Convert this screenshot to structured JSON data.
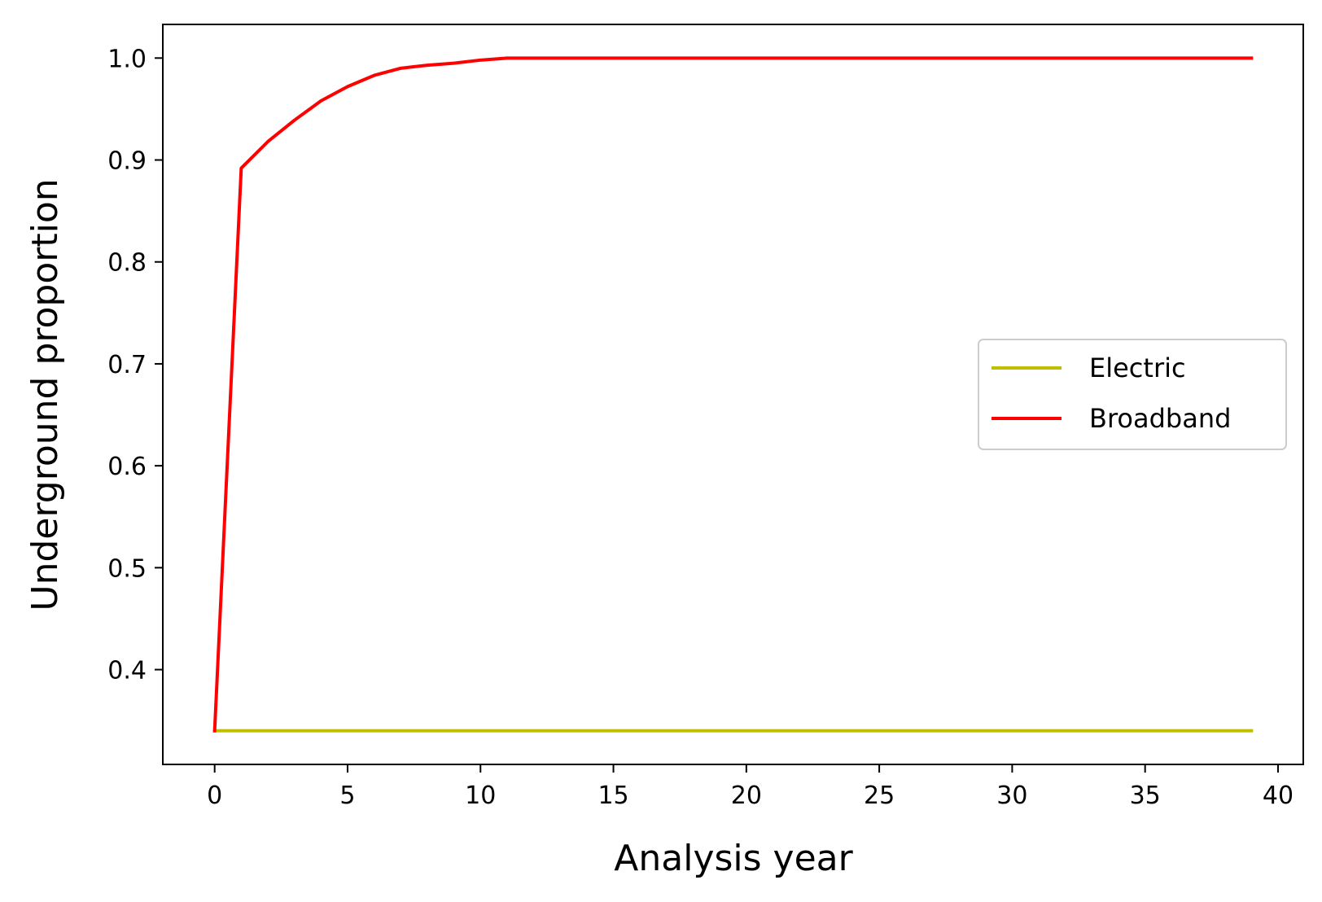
{
  "chart_data": {
    "type": "line",
    "title": "",
    "xlabel": "Analysis year",
    "ylabel": "Underground proportion",
    "xlim": [
      -1.95,
      40.95
    ],
    "ylim": [
      0.307,
      1.033
    ],
    "xticks": [
      0,
      5,
      10,
      15,
      20,
      25,
      30,
      35,
      40
    ],
    "xtick_labels": [
      "0",
      "5",
      "10",
      "15",
      "20",
      "25",
      "30",
      "35",
      "40"
    ],
    "yticks": [
      0.4,
      0.5,
      0.6,
      0.7,
      0.8,
      0.9,
      1.0
    ],
    "ytick_labels": [
      "0.4",
      "0.5",
      "0.6",
      "0.7",
      "0.8",
      "0.9",
      "1.0"
    ],
    "grid": false,
    "legend_position": "center-right",
    "series": [
      {
        "name": "Electric",
        "color": "#bfbf00",
        "x": [
          0,
          1,
          2,
          3,
          4,
          5,
          6,
          7,
          8,
          9,
          10,
          11,
          12,
          13,
          14,
          15,
          16,
          17,
          18,
          19,
          20,
          21,
          22,
          23,
          24,
          25,
          26,
          27,
          28,
          29,
          30,
          31,
          32,
          33,
          34,
          35,
          36,
          37,
          38,
          39
        ],
        "values": [
          0.34,
          0.34,
          0.34,
          0.34,
          0.34,
          0.34,
          0.34,
          0.34,
          0.34,
          0.34,
          0.34,
          0.34,
          0.34,
          0.34,
          0.34,
          0.34,
          0.34,
          0.34,
          0.34,
          0.34,
          0.34,
          0.34,
          0.34,
          0.34,
          0.34,
          0.34,
          0.34,
          0.34,
          0.34,
          0.34,
          0.34,
          0.34,
          0.34,
          0.34,
          0.34,
          0.34,
          0.34,
          0.34,
          0.34,
          0.34
        ]
      },
      {
        "name": "Broadband",
        "color": "#ff0000",
        "x": [
          0,
          1,
          2,
          3,
          4,
          5,
          6,
          7,
          8,
          9,
          10,
          11,
          12,
          13,
          14,
          15,
          16,
          17,
          18,
          19,
          20,
          21,
          22,
          23,
          24,
          25,
          26,
          27,
          28,
          29,
          30,
          31,
          32,
          33,
          34,
          35,
          36,
          37,
          38,
          39
        ],
        "values": [
          0.34,
          0.892,
          0.918,
          0.939,
          0.958,
          0.972,
          0.983,
          0.99,
          0.993,
          0.995,
          0.998,
          1.0,
          1.0,
          1.0,
          1.0,
          1.0,
          1.0,
          1.0,
          1.0,
          1.0,
          1.0,
          1.0,
          1.0,
          1.0,
          1.0,
          1.0,
          1.0,
          1.0,
          1.0,
          1.0,
          1.0,
          1.0,
          1.0,
          1.0,
          1.0,
          1.0,
          1.0,
          1.0,
          1.0,
          1.0
        ]
      }
    ]
  }
}
